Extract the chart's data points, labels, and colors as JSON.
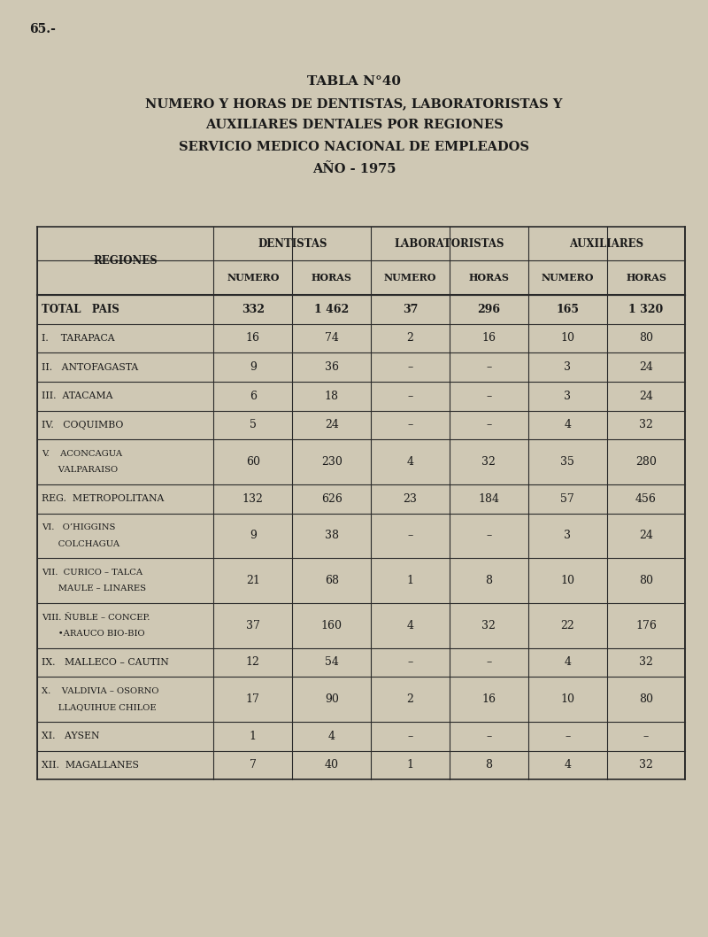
{
  "page_label": "65.-",
  "title_line1": "TABLA N°40",
  "title_line2": "NUMERO Y HORAS DE DENTISTAS, LABORATORISTAS Y",
  "title_line3": "AUXILIARES DENTALES POR REGIONES",
  "title_line4": "SERVICIO MEDICO NACIONAL DE EMPLEADOS",
  "title_line5": "AÑO - 1975",
  "bg_color": "#cfc8b4",
  "text_color": "#1a1a1a",
  "col_headers_top": [
    "DENTISTAS",
    "LABORATORISTAS",
    "AUXILIARES"
  ],
  "col_headers_sub": [
    "NUMERO",
    "HORAS",
    "NUMERO",
    "HORAS",
    "NUMERO",
    "HORAS"
  ],
  "row_header": "REGIONES",
  "rows": [
    {
      "label": "TOTAL   PAIS",
      "label2": "",
      "values": [
        "332",
        "1 462",
        "37",
        "296",
        "165",
        "1 320"
      ],
      "bold": true
    },
    {
      "label": "I.    TARAPACA",
      "label2": "",
      "values": [
        "16",
        "74",
        "2",
        "16",
        "10",
        "80"
      ],
      "bold": false
    },
    {
      "label": "II.   ANTOFAGASTA",
      "label2": "",
      "values": [
        "9",
        "36",
        "–",
        "–",
        "3",
        "24"
      ],
      "bold": false
    },
    {
      "label": "III.  ATACAMA",
      "label2": "",
      "values": [
        "6",
        "18",
        "–",
        "–",
        "3",
        "24"
      ],
      "bold": false
    },
    {
      "label": "IV.   COQUIMBO",
      "label2": "",
      "values": [
        "5",
        "24",
        "–",
        "–",
        "4",
        "32"
      ],
      "bold": false
    },
    {
      "label": "V.    ACONCAGUA",
      "label2": "      VALPARAISO",
      "values": [
        "60",
        "230",
        "4",
        "32",
        "35",
        "280"
      ],
      "bold": false
    },
    {
      "label": "REG.  METROPOLITANA",
      "label2": "",
      "values": [
        "132",
        "626",
        "23",
        "184",
        "57",
        "456"
      ],
      "bold": false
    },
    {
      "label": "VI.   O’HIGGINS",
      "label2": "      COLCHAGUA",
      "values": [
        "9",
        "38",
        "–",
        "–",
        "3",
        "24"
      ],
      "bold": false
    },
    {
      "label": "VII.  CURICO – TALCA",
      "label2": "      MAULE – LINARES",
      "values": [
        "21",
        "68",
        "1",
        "8",
        "10",
        "80"
      ],
      "bold": false
    },
    {
      "label": "VIII. ÑUBLE – CONCEP.",
      "label2": "      •ARAUCO BIO-BIO",
      "values": [
        "37",
        "160",
        "4",
        "32",
        "22",
        "176"
      ],
      "bold": false
    },
    {
      "label": "IX.   MALLECO – CAUTIN",
      "label2": "",
      "values": [
        "12",
        "54",
        "–",
        "–",
        "4",
        "32"
      ],
      "bold": false
    },
    {
      "label": "X.    VALDIVIA – OSORNO",
      "label2": "      LLAQUIHUE CHILOE",
      "values": [
        "17",
        "90",
        "2",
        "16",
        "10",
        "80"
      ],
      "bold": false
    },
    {
      "label": "XI.   AYSEN",
      "label2": "",
      "values": [
        "1",
        "4",
        "–",
        "–",
        "–",
        "–"
      ],
      "bold": false
    },
    {
      "label": "XII.  MAGALLANES",
      "label2": "",
      "values": [
        "7",
        "40",
        "1",
        "8",
        "4",
        "32"
      ],
      "bold": false
    }
  ]
}
